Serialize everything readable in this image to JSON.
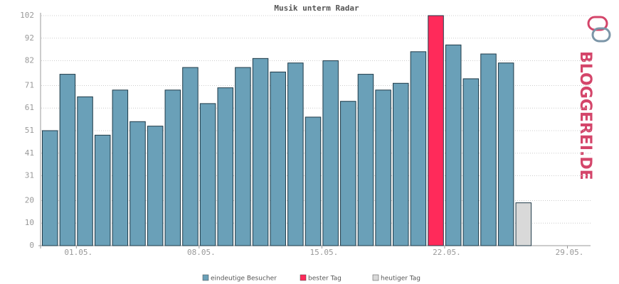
{
  "chart_data": {
    "type": "bar",
    "title": "Musik unterm Radar",
    "categories": [
      null,
      "01.05.",
      null,
      null,
      null,
      null,
      null,
      null,
      "08.05.",
      null,
      null,
      null,
      null,
      null,
      null,
      "15.05.",
      null,
      null,
      null,
      null,
      null,
      null,
      "22.05.",
      null,
      null,
      null,
      null,
      null,
      null,
      "29.05.",
      null,
      null
    ],
    "series": [
      {
        "name": "eindeutige Besucher",
        "color": "#6aa0b8",
        "values": [
          51,
          76,
          66,
          49,
          69,
          55,
          53,
          69,
          79,
          63,
          70,
          79,
          83,
          77,
          81,
          57,
          82,
          64,
          76,
          69,
          72,
          86,
          null,
          89,
          74,
          85,
          81,
          null,
          null,
          null,
          null,
          null
        ]
      },
      {
        "name": "bester Tag",
        "color": "#ff2a5a",
        "values": [
          null,
          null,
          null,
          null,
          null,
          null,
          null,
          null,
          null,
          null,
          null,
          null,
          null,
          null,
          null,
          null,
          null,
          null,
          null,
          null,
          null,
          null,
          102,
          null,
          null,
          null,
          null,
          null,
          null,
          null,
          null,
          null
        ]
      },
      {
        "name": "heutiger Tag",
        "color": "#d9d9d9",
        "values": [
          null,
          null,
          null,
          null,
          null,
          null,
          null,
          null,
          null,
          null,
          null,
          null,
          null,
          null,
          null,
          null,
          null,
          null,
          null,
          null,
          null,
          null,
          null,
          null,
          null,
          null,
          null,
          19,
          null,
          null,
          null,
          null
        ]
      }
    ],
    "ylim": [
      0,
      102
    ],
    "yticks": [
      0,
      10,
      20,
      31,
      41,
      51,
      61,
      71,
      82,
      92,
      102
    ],
    "grid": true,
    "logo": "BLOGGEREI.DE"
  }
}
